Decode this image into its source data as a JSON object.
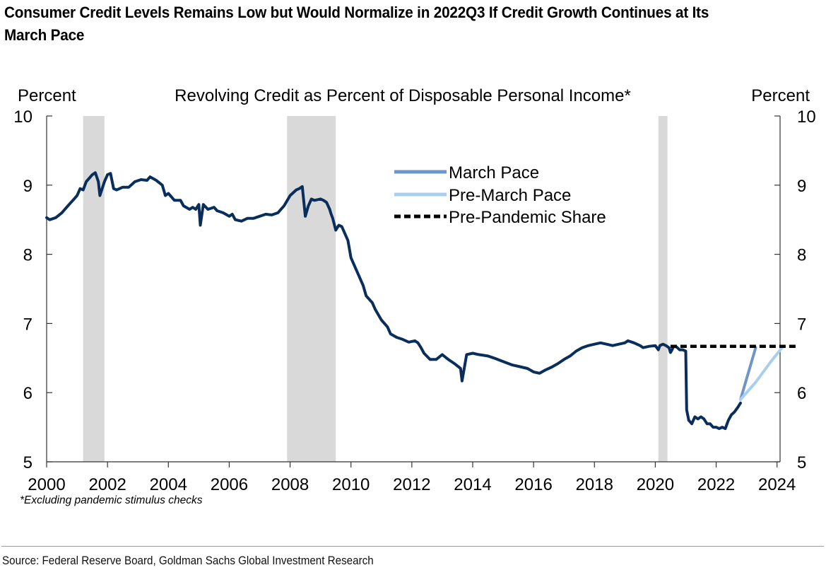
{
  "title": "Consumer Credit Levels Remains Low but Would Normalize in 2022Q3 If Credit Growth Continues at Its March Pace",
  "footnote": "*Excluding pandemic stimulus checks",
  "source": "Source: Federal Reserve Board, Goldman Sachs Global Investment Research",
  "colors": {
    "main_series": "#0a2e5c",
    "march_pace": "#6e96c8",
    "pre_march_pace": "#a8cfee",
    "pre_pandemic": "#000000",
    "recession_band": "#d9d9d9"
  },
  "chart_data": {
    "type": "line",
    "title": "Revolving Credit as Percent of Disposable Personal Income*",
    "ylabel_left": "Percent",
    "ylabel_right": "Percent",
    "xlim": [
      2000,
      2024.1
    ],
    "ylim": [
      5,
      10
    ],
    "x_ticks": [
      "2000",
      "2002",
      "2004",
      "2006",
      "2008",
      "2010",
      "2012",
      "2014",
      "2016",
      "2018",
      "2020",
      "2022",
      "2024"
    ],
    "y_ticks": [
      "5",
      "6",
      "7",
      "8",
      "9",
      "10"
    ],
    "legend_position": "upper-center",
    "recession_shading": [
      {
        "start": 2001.2,
        "end": 2001.9
      },
      {
        "start": 2007.9,
        "end": 2009.5
      },
      {
        "start": 2020.1,
        "end": 2020.4
      }
    ],
    "series": [
      {
        "id": "historical",
        "points": [
          [
            2000.0,
            8.53
          ],
          [
            2000.1,
            8.5
          ],
          [
            2000.3,
            8.53
          ],
          [
            2000.5,
            8.6
          ],
          [
            2000.7,
            8.7
          ],
          [
            2000.9,
            8.8
          ],
          [
            2001.0,
            8.85
          ],
          [
            2001.1,
            8.95
          ],
          [
            2001.2,
            8.93
          ],
          [
            2001.3,
            9.05
          ],
          [
            2001.4,
            9.1
          ],
          [
            2001.5,
            9.15
          ],
          [
            2001.6,
            9.18
          ],
          [
            2001.7,
            9.05
          ],
          [
            2001.75,
            8.85
          ],
          [
            2001.9,
            9.05
          ],
          [
            2002.0,
            9.15
          ],
          [
            2002.1,
            9.17
          ],
          [
            2002.2,
            8.95
          ],
          [
            2002.3,
            8.93
          ],
          [
            2002.5,
            8.97
          ],
          [
            2002.7,
            8.97
          ],
          [
            2002.9,
            9.05
          ],
          [
            2003.1,
            9.08
          ],
          [
            2003.3,
            9.07
          ],
          [
            2003.4,
            9.12
          ],
          [
            2003.6,
            9.07
          ],
          [
            2003.8,
            9.0
          ],
          [
            2003.9,
            8.85
          ],
          [
            2004.0,
            8.88
          ],
          [
            2004.2,
            8.78
          ],
          [
            2004.4,
            8.78
          ],
          [
            2004.5,
            8.7
          ],
          [
            2004.7,
            8.65
          ],
          [
            2004.8,
            8.68
          ],
          [
            2004.9,
            8.65
          ],
          [
            2005.0,
            8.72
          ],
          [
            2005.05,
            8.42
          ],
          [
            2005.15,
            8.72
          ],
          [
            2005.3,
            8.65
          ],
          [
            2005.5,
            8.68
          ],
          [
            2005.6,
            8.63
          ],
          [
            2005.8,
            8.6
          ],
          [
            2006.0,
            8.55
          ],
          [
            2006.1,
            8.58
          ],
          [
            2006.2,
            8.5
          ],
          [
            2006.4,
            8.48
          ],
          [
            2006.6,
            8.52
          ],
          [
            2006.8,
            8.52
          ],
          [
            2007.0,
            8.55
          ],
          [
            2007.2,
            8.58
          ],
          [
            2007.4,
            8.57
          ],
          [
            2007.6,
            8.6
          ],
          [
            2007.8,
            8.7
          ],
          [
            2008.0,
            8.85
          ],
          [
            2008.2,
            8.93
          ],
          [
            2008.3,
            8.95
          ],
          [
            2008.4,
            8.98
          ],
          [
            2008.5,
            8.55
          ],
          [
            2008.6,
            8.7
          ],
          [
            2008.7,
            8.8
          ],
          [
            2008.8,
            8.78
          ],
          [
            2009.0,
            8.8
          ],
          [
            2009.1,
            8.78
          ],
          [
            2009.2,
            8.75
          ],
          [
            2009.3,
            8.65
          ],
          [
            2009.35,
            8.58
          ],
          [
            2009.4,
            8.52
          ],
          [
            2009.5,
            8.35
          ],
          [
            2009.6,
            8.42
          ],
          [
            2009.7,
            8.4
          ],
          [
            2009.8,
            8.3
          ],
          [
            2009.9,
            8.2
          ],
          [
            2010.0,
            7.95
          ],
          [
            2010.2,
            7.75
          ],
          [
            2010.3,
            7.65
          ],
          [
            2010.4,
            7.55
          ],
          [
            2010.5,
            7.4
          ],
          [
            2010.7,
            7.3
          ],
          [
            2010.8,
            7.2
          ],
          [
            2011.0,
            7.05
          ],
          [
            2011.2,
            6.95
          ],
          [
            2011.3,
            6.85
          ],
          [
            2011.5,
            6.8
          ],
          [
            2011.7,
            6.77
          ],
          [
            2011.9,
            6.73
          ],
          [
            2012.1,
            6.75
          ],
          [
            2012.2,
            6.72
          ],
          [
            2012.3,
            6.65
          ],
          [
            2012.4,
            6.57
          ],
          [
            2012.6,
            6.48
          ],
          [
            2012.8,
            6.48
          ],
          [
            2013.0,
            6.55
          ],
          [
            2013.2,
            6.48
          ],
          [
            2013.4,
            6.42
          ],
          [
            2013.6,
            6.35
          ],
          [
            2013.65,
            6.17
          ],
          [
            2013.8,
            6.55
          ],
          [
            2014.0,
            6.57
          ],
          [
            2014.2,
            6.55
          ],
          [
            2014.5,
            6.53
          ],
          [
            2014.7,
            6.5
          ],
          [
            2015.0,
            6.45
          ],
          [
            2015.3,
            6.4
          ],
          [
            2015.5,
            6.38
          ],
          [
            2015.8,
            6.35
          ],
          [
            2016.0,
            6.3
          ],
          [
            2016.2,
            6.28
          ],
          [
            2016.4,
            6.33
          ],
          [
            2016.6,
            6.37
          ],
          [
            2016.8,
            6.42
          ],
          [
            2017.0,
            6.48
          ],
          [
            2017.2,
            6.53
          ],
          [
            2017.4,
            6.6
          ],
          [
            2017.6,
            6.65
          ],
          [
            2017.8,
            6.68
          ],
          [
            2018.0,
            6.7
          ],
          [
            2018.2,
            6.72
          ],
          [
            2018.4,
            6.7
          ],
          [
            2018.6,
            6.68
          ],
          [
            2018.8,
            6.7
          ],
          [
            2019.0,
            6.72
          ],
          [
            2019.1,
            6.75
          ],
          [
            2019.3,
            6.72
          ],
          [
            2019.5,
            6.68
          ],
          [
            2019.6,
            6.65
          ],
          [
            2019.8,
            6.67
          ],
          [
            2020.0,
            6.68
          ],
          [
            2020.1,
            6.62
          ],
          [
            2020.15,
            6.68
          ],
          [
            2020.25,
            6.7
          ],
          [
            2020.35,
            6.68
          ],
          [
            2020.45,
            6.65
          ],
          [
            2020.5,
            6.58
          ],
          [
            2020.55,
            6.62
          ],
          [
            2020.6,
            6.67
          ],
          [
            2020.7,
            6.66
          ],
          [
            2020.8,
            6.62
          ],
          [
            2020.9,
            6.62
          ],
          [
            2021.0,
            6.6
          ],
          [
            2021.03,
            5.75
          ],
          [
            2021.1,
            5.6
          ],
          [
            2021.2,
            5.55
          ],
          [
            2021.3,
            5.65
          ],
          [
            2021.4,
            5.62
          ],
          [
            2021.5,
            5.65
          ],
          [
            2021.6,
            5.62
          ],
          [
            2021.7,
            5.55
          ],
          [
            2021.8,
            5.55
          ],
          [
            2021.9,
            5.5
          ],
          [
            2022.0,
            5.5
          ],
          [
            2022.1,
            5.48
          ],
          [
            2022.2,
            5.5
          ],
          [
            2022.3,
            5.48
          ],
          [
            2022.4,
            5.6
          ],
          [
            2022.5,
            5.68
          ],
          [
            2022.6,
            5.72
          ],
          [
            2022.7,
            5.78
          ],
          [
            2022.8,
            5.85
          ]
        ]
      },
      {
        "id": "march_pace",
        "name": "March Pace",
        "points": [
          [
            2022.8,
            5.9
          ],
          [
            2023.0,
            6.2
          ],
          [
            2023.3,
            6.65
          ]
        ]
      },
      {
        "id": "pre_march_pace",
        "name": "Pre-March Pace",
        "points": [
          [
            2022.8,
            5.9
          ],
          [
            2023.3,
            6.15
          ],
          [
            2023.8,
            6.45
          ],
          [
            2024.2,
            6.67
          ]
        ]
      },
      {
        "id": "pre_pandemic",
        "name": "Pre-Pandemic Share",
        "points": [
          [
            2020.5,
            6.67
          ],
          [
            2024.7,
            6.67
          ]
        ]
      }
    ]
  }
}
